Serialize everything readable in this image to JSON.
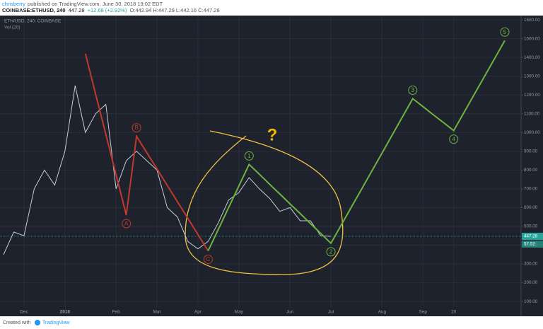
{
  "header": {
    "author": "chrisberry",
    "published": "published on TradingView.com, June 30, 2018 19:02 EDT",
    "symbol": "COINBASE:ETHUSD, 240",
    "price": "447.28",
    "change": "+12.68 (+2.92%)",
    "ohlc": "O:442.94 H:447.29 L:442.16 C:447.28"
  },
  "chart_data": {
    "type": "line",
    "categories": [
      null,
      null,
      "Dec",
      null,
      null,
      null,
      "2018",
      null,
      null,
      null,
      null,
      "Feb",
      null,
      null,
      null,
      "Mar",
      null,
      null,
      null,
      "Apr",
      null,
      null,
      null,
      "May",
      null,
      null,
      null,
      null,
      "Jun",
      null,
      null,
      null,
      "Jul",
      null,
      null,
      null,
      null,
      "Aug",
      null,
      null,
      null,
      "Sep",
      null,
      null,
      "20",
      null,
      null,
      null,
      null,
      null
    ],
    "series": [
      {
        "name": "ETH/USD, 240, COINBASE",
        "color": "#c9ccd4",
        "values": [
          350,
          470,
          450,
          700,
          800,
          720,
          900,
          1250,
          1000,
          1100,
          1150,
          700,
          850,
          900,
          850,
          800,
          600,
          550,
          420,
          380,
          420,
          520,
          640,
          680,
          760,
          700,
          650,
          580,
          600,
          530,
          530,
          450,
          447.28,
          null,
          null,
          null,
          null,
          null,
          null,
          null,
          null,
          null,
          null,
          null,
          null,
          null,
          null,
          null,
          null,
          null
        ]
      },
      {
        "color": "#c0392b",
        "values": [
          null,
          null,
          null,
          null,
          null,
          null,
          null,
          null,
          1420,
          1205,
          990,
          775,
          560,
          980,
          893,
          806,
          719,
          631,
          544,
          457,
          370,
          null,
          null,
          null,
          null,
          null,
          null,
          null,
          null,
          null,
          null,
          null,
          null,
          null,
          null,
          null,
          null,
          null,
          null,
          null,
          null,
          null,
          null,
          null,
          null,
          null,
          null,
          null,
          null,
          null
        ],
        "labels": [
          null,
          null,
          null,
          null,
          null,
          null,
          null,
          null,
          null,
          null,
          null,
          null,
          "A",
          "B",
          null,
          null,
          null,
          null,
          null,
          null,
          "C",
          null,
          null,
          null,
          null,
          null,
          null,
          null,
          null,
          null,
          null,
          null,
          null,
          null,
          null,
          null,
          null,
          null,
          null,
          null,
          null,
          null,
          null,
          null,
          null,
          null,
          null,
          null,
          null,
          null
        ]
      },
      {
        "color": "#6db33f",
        "values": [
          null,
          null,
          null,
          null,
          null,
          null,
          null,
          null,
          null,
          null,
          null,
          null,
          null,
          null,
          null,
          null,
          null,
          null,
          null,
          null,
          370,
          485,
          600,
          715,
          830,
          778,
          725,
          673,
          620,
          568,
          515,
          463,
          410,
          506,
          603,
          699,
          795,
          891,
          988,
          1084,
          1180,
          1138,
          1095,
          1053,
          1010,
          1106,
          1202,
          1298,
          1394,
          1490
        ],
        "labels": [
          null,
          null,
          null,
          null,
          null,
          null,
          null,
          null,
          null,
          null,
          null,
          null,
          null,
          null,
          null,
          null,
          null,
          null,
          null,
          null,
          null,
          null,
          null,
          null,
          "1",
          null,
          null,
          null,
          null,
          null,
          null,
          null,
          "2",
          null,
          null,
          null,
          null,
          null,
          null,
          null,
          "3",
          null,
          null,
          null,
          "4",
          null,
          null,
          null,
          null,
          "5"
        ]
      }
    ],
    "ylim": [
      25,
      1623
    ],
    "yticks": [
      {
        "value": 100,
        "label": "100.00"
      },
      {
        "value": 200,
        "label": "200.00"
      },
      {
        "value": 300,
        "label": "300.00"
      },
      {
        "value": 400,
        "label": "400.00"
      },
      {
        "value": 500,
        "label": "500.00"
      },
      {
        "value": 600,
        "label": "600.00"
      },
      {
        "value": 700,
        "label": "700.00"
      },
      {
        "value": 800,
        "label": "800.00"
      },
      {
        "value": 900,
        "label": "900.00"
      },
      {
        "value": 1000,
        "label": "1000.00"
      },
      {
        "value": 1100,
        "label": "1100.00"
      },
      {
        "value": 1200,
        "label": "1200.00"
      },
      {
        "value": 1300,
        "label": "1300.00"
      },
      {
        "value": 1400,
        "label": "1400.00"
      },
      {
        "value": 1500,
        "label": "1500.00"
      },
      {
        "value": 1600,
        "label": "1600.00"
      }
    ],
    "grid": true,
    "last_price": 447.28,
    "volume": {
      "title": "Vol (20)",
      "last": 57.52
    },
    "annotation": "?"
  },
  "footer": {
    "created": "Created with",
    "brand": "TradingView"
  }
}
